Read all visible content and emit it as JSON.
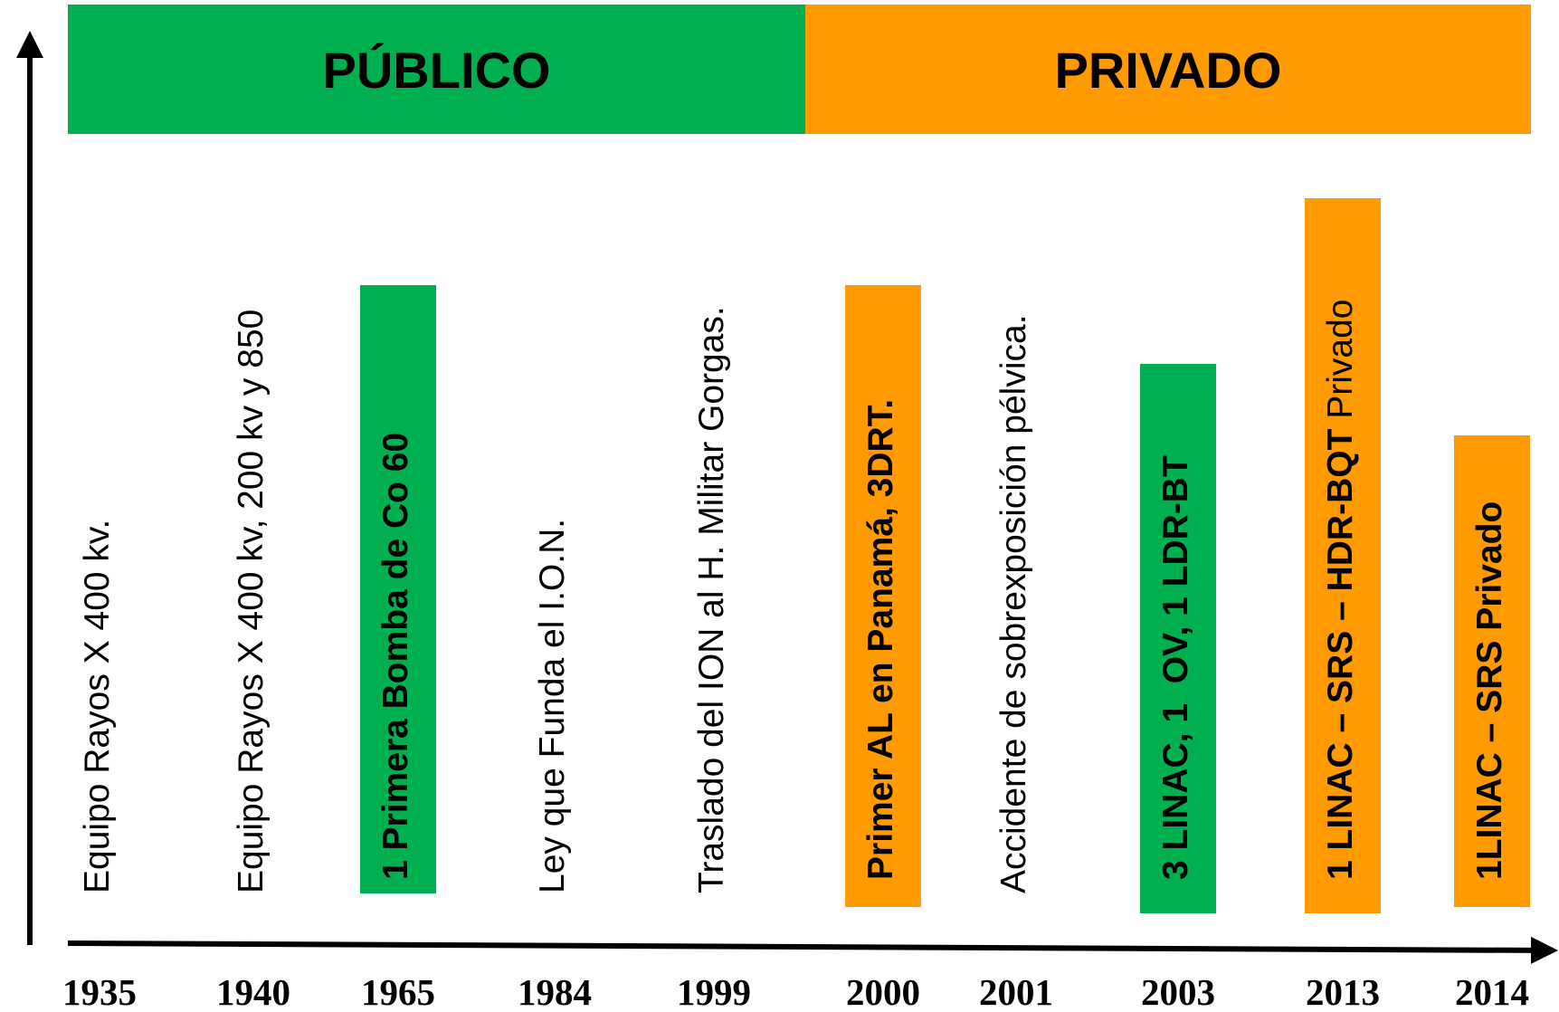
{
  "header": {
    "bands": [
      {
        "label": "PÚBLICO",
        "color": "#00b050"
      },
      {
        "label": "PRIVADO",
        "color": "#ff9a00"
      }
    ]
  },
  "timeline": [
    {
      "year": "1935",
      "parts": [
        {
          "text": "Equipo Rayos X 400 kv.",
          "bold": false
        }
      ]
    },
    {
      "year": "1940",
      "parts": [
        {
          "text": "Equipo Rayos X 400 kv, 200 kv y 850",
          "bold": false
        }
      ]
    },
    {
      "year": "1965",
      "box": "#00b050",
      "parts": [
        {
          "text": "1 Primera Bomba de Co 60",
          "bold": true
        }
      ]
    },
    {
      "year": "1984",
      "parts": [
        {
          "text": "Ley que Funda el I.O.N.",
          "bold": false
        }
      ]
    },
    {
      "year": "1999",
      "parts": [
        {
          "text": "Traslado del ION al H. Militar Gorgas.",
          "bold": false
        }
      ]
    },
    {
      "year": "2000",
      "box": "#ff9a00",
      "parts": [
        {
          "text": "Primer AL en Panamá, 3DRT.",
          "bold": true
        }
      ]
    },
    {
      "year": "2001",
      "parts": [
        {
          "text": "Accidente de sobrexposición pélvica.",
          "bold": false
        }
      ]
    },
    {
      "year": "2003",
      "box": "#00b050",
      "parts": [
        {
          "text": "3 LINAC, 1  OV, 1 LDR-BT",
          "bold": true
        }
      ]
    },
    {
      "year": "2013",
      "box": "#ff9a00",
      "parts": [
        {
          "text": "1 LINAC – SRS – HDR-BQT",
          "bold": true
        },
        {
          "text": "Privado",
          "bold": false
        }
      ]
    },
    {
      "year": "2014",
      "box": "#ff9a00",
      "parts": [
        {
          "text": "1LINAC – SRS Privado",
          "bold": true
        }
      ]
    }
  ]
}
